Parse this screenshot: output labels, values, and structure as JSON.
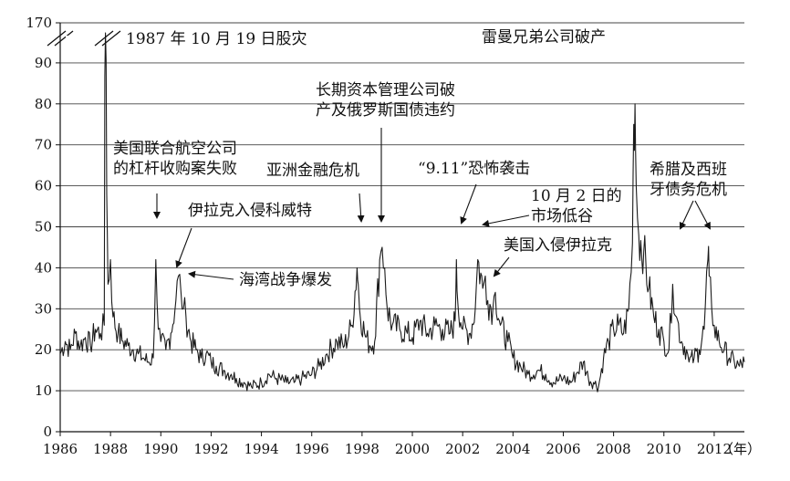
{
  "chart_data": {
    "type": "line",
    "title": "",
    "xlabel": "（年）",
    "ylabel": "",
    "xlim": [
      1986,
      2013.2
    ],
    "ylim": [
      0,
      170
    ],
    "axis_break": [
      90,
      170
    ],
    "grid": true,
    "x_ticks": [
      "1986",
      "1988",
      "1990",
      "1992",
      "1994",
      "1996",
      "1998",
      "2000",
      "2002",
      "2004",
      "2006",
      "2008",
      "2010",
      "2012"
    ],
    "y_ticks": [
      "0",
      "10",
      "20",
      "30",
      "40",
      "50",
      "60",
      "70",
      "80",
      "90",
      "170"
    ],
    "series": [
      {
        "x": [
          1986.0,
          1986.2,
          1986.4,
          1986.6,
          1986.8,
          1987.0,
          1987.2,
          1987.4,
          1987.6,
          1987.75,
          1987.8,
          1987.85,
          1987.9,
          1988.0,
          1988.1,
          1988.3,
          1988.5,
          1988.7,
          1988.9,
          1989.1,
          1989.3,
          1989.5,
          1989.7,
          1989.8,
          1989.9,
          1990.0,
          1990.2,
          1990.4,
          1990.6,
          1990.7,
          1990.8,
          1990.9,
          1991.0,
          1991.2,
          1991.4,
          1991.6,
          1991.8,
          1992.0,
          1992.2,
          1992.5,
          1992.8,
          1993.0,
          1993.3,
          1993.6,
          1994.0,
          1994.3,
          1994.6,
          1995.0,
          1995.3,
          1995.6,
          1996.0,
          1996.3,
          1996.6,
          1997.0,
          1997.3,
          1997.6,
          1997.8,
          1997.85,
          1997.9,
          1998.1,
          1998.3,
          1998.5,
          1998.7,
          1998.8,
          1998.9,
          1999.0,
          1999.2,
          1999.5,
          1999.8,
          2000.0,
          2000.3,
          2000.6,
          2000.9,
          2001.2,
          2001.5,
          2001.7,
          2001.75,
          2001.8,
          2002.0,
          2002.3,
          2002.5,
          2002.6,
          2002.8,
          2002.9,
          2003.0,
          2003.2,
          2003.3,
          2003.5,
          2003.8,
          2004.0,
          2004.3,
          2004.6,
          2005.0,
          2005.3,
          2005.6,
          2006.0,
          2006.3,
          2006.5,
          2006.8,
          2007.0,
          2007.2,
          2007.4,
          2007.6,
          2007.8,
          2008.0,
          2008.2,
          2008.4,
          2008.6,
          2008.75,
          2008.8,
          2008.85,
          2008.9,
          2009.0,
          2009.2,
          2009.4,
          2009.6,
          2009.8,
          2010.0,
          2010.2,
          2010.35,
          2010.5,
          2010.7,
          2010.9,
          2011.0,
          2011.2,
          2011.4,
          2011.6,
          2011.75,
          2011.8,
          2011.9,
          2012.0,
          2012.2,
          2012.4,
          2012.6,
          2012.8,
          2013.0,
          2013.2
        ],
        "values": [
          19,
          22,
          20,
          24,
          21,
          23,
          21,
          25,
          24,
          26,
          150,
          58,
          36,
          42,
          28,
          24,
          22,
          21,
          20,
          19,
          18,
          17,
          18,
          42,
          25,
          22,
          20,
          24,
          32,
          38,
          34,
          30,
          28,
          22,
          20,
          18,
          19,
          17,
          16,
          15,
          14,
          13,
          12,
          11,
          12,
          14,
          13,
          12,
          12,
          13,
          14,
          16,
          19,
          22,
          21,
          26,
          40,
          36,
          30,
          24,
          21,
          22,
          42,
          45,
          40,
          30,
          26,
          25,
          24,
          23,
          27,
          24,
          26,
          25,
          24,
          27,
          42,
          32,
          25,
          24,
          30,
          42,
          35,
          38,
          32,
          30,
          34,
          26,
          22,
          18,
          16,
          14,
          15,
          14,
          12,
          13,
          12,
          14,
          17,
          13,
          12,
          11,
          18,
          22,
          25,
          26,
          24,
          30,
          46,
          75,
          80,
          60,
          48,
          44,
          35,
          28,
          25,
          22,
          20,
          36,
          28,
          22,
          20,
          17,
          18,
          20,
          25,
          42,
          38,
          30,
          26,
          22,
          20,
          18,
          17,
          16,
          17
        ]
      }
    ],
    "annotations": [
      {
        "text": "1987 年 10 月 19 日股灾"
      },
      {
        "text": "美国联合航空公司的杠杆收购案失败",
        "lines": [
          "美国联合航空公司",
          "的杠杆收购案失败"
        ]
      },
      {
        "text": "伊拉克入侵科威特"
      },
      {
        "text": "海湾战争爆发"
      },
      {
        "text": "亚洲金融危机"
      },
      {
        "text": "长期资本管理公司破产及俄罗斯国债违约",
        "lines": [
          "长期资本管理公司破",
          "产及俄罗斯国债违约"
        ]
      },
      {
        "text": "“9.11”恐怖袭击"
      },
      {
        "text": "10 月 2 日的市场低谷",
        "lines": [
          "10 月 2 日的",
          "市场低谷"
        ]
      },
      {
        "text": "美国入侵伊拉克"
      },
      {
        "text": "雷曼兄弟公司破产"
      },
      {
        "text": "希腊及西班牙债务危机",
        "lines": [
          "希腊及西班",
          "牙债务危机"
        ]
      }
    ]
  }
}
